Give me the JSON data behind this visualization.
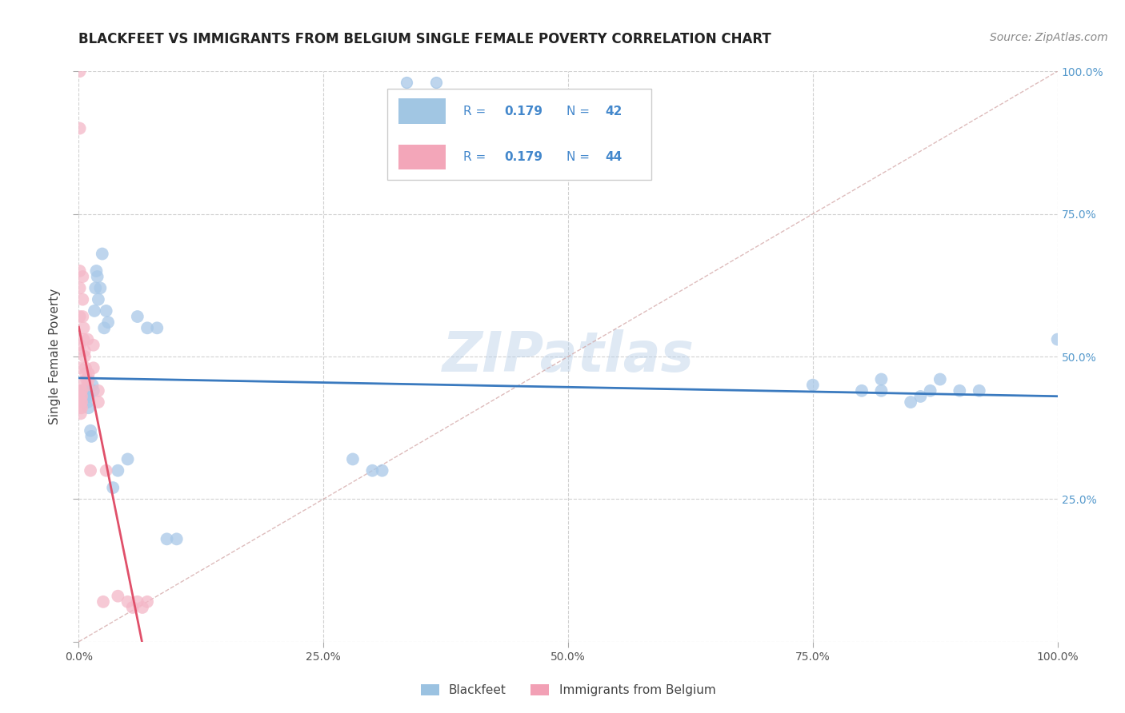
{
  "title": "BLACKFEET VS IMMIGRANTS FROM BELGIUM SINGLE FEMALE POVERTY CORRELATION CHART",
  "source": "Source: ZipAtlas.com",
  "ylabel": "Single Female Poverty",
  "xlim": [
    0,
    1.0
  ],
  "ylim": [
    0,
    1.0
  ],
  "xtick_labels": [
    "0.0%",
    "25.0%",
    "50.0%",
    "75.0%",
    "100.0%"
  ],
  "xtick_vals": [
    0,
    0.25,
    0.5,
    0.75,
    1.0
  ],
  "ytick_vals_right": [
    0.25,
    0.5,
    0.75,
    1.0
  ],
  "ytick_labels_right": [
    "25.0%",
    "50.0%",
    "75.0%",
    "100.0%"
  ],
  "legend_R_blackfeet": "0.179",
  "legend_N_blackfeet": "42",
  "legend_R_belgium": "0.179",
  "legend_N_belgium": "44",
  "color_blackfeet": "#a8c8e8",
  "color_belgium": "#f4b8c8",
  "color_blackfeet_fill": "#8ab8dc",
  "color_belgium_fill": "#f090a8",
  "color_blackfeet_line": "#3a7abf",
  "color_belgium_line": "#e0506a",
  "color_diagonal": "#d0a0a0",
  "background_color": "#ffffff",
  "grid_color": "#cccccc",
  "blackfeet_x": [
    0.005,
    0.007,
    0.008,
    0.009,
    0.01,
    0.01,
    0.012,
    0.013,
    0.014,
    0.015,
    0.016,
    0.017,
    0.018,
    0.019,
    0.02,
    0.022,
    0.024,
    0.026,
    0.028,
    0.03,
    0.035,
    0.04,
    0.05,
    0.06,
    0.07,
    0.08,
    0.09,
    0.1,
    0.28,
    0.3,
    0.31,
    0.75,
    0.8,
    0.82,
    0.82,
    0.85,
    0.86,
    0.87,
    0.88,
    0.9,
    0.92,
    1.0
  ],
  "blackfeet_y": [
    0.44,
    0.43,
    0.44,
    0.42,
    0.41,
    0.43,
    0.37,
    0.36,
    0.45,
    0.44,
    0.58,
    0.62,
    0.65,
    0.64,
    0.6,
    0.62,
    0.68,
    0.55,
    0.58,
    0.56,
    0.27,
    0.3,
    0.32,
    0.57,
    0.55,
    0.55,
    0.18,
    0.18,
    0.32,
    0.3,
    0.3,
    0.45,
    0.44,
    0.46,
    0.44,
    0.42,
    0.43,
    0.44,
    0.46,
    0.44,
    0.44,
    0.53
  ],
  "belgium_x": [
    0.001,
    0.001,
    0.001,
    0.001,
    0.001,
    0.001,
    0.001,
    0.002,
    0.002,
    0.002,
    0.002,
    0.002,
    0.002,
    0.003,
    0.003,
    0.003,
    0.003,
    0.004,
    0.004,
    0.004,
    0.005,
    0.005,
    0.006,
    0.006,
    0.007,
    0.007,
    0.008,
    0.009,
    0.009,
    0.01,
    0.01,
    0.012,
    0.015,
    0.015,
    0.02,
    0.02,
    0.025,
    0.028,
    0.04,
    0.05,
    0.055,
    0.06,
    0.065,
    0.07
  ],
  "belgium_y": [
    1.0,
    0.9,
    0.65,
    0.62,
    0.57,
    0.52,
    0.48,
    0.45,
    0.44,
    0.43,
    0.42,
    0.41,
    0.4,
    0.44,
    0.43,
    0.42,
    0.41,
    0.64,
    0.6,
    0.57,
    0.55,
    0.53,
    0.51,
    0.5,
    0.48,
    0.47,
    0.46,
    0.53,
    0.45,
    0.47,
    0.46,
    0.3,
    0.52,
    0.48,
    0.44,
    0.42,
    0.07,
    0.3,
    0.08,
    0.07,
    0.06,
    0.07,
    0.06,
    0.07
  ],
  "watermark": "ZIPatlas",
  "title_fontsize": 12,
  "axis_label_fontsize": 11,
  "tick_fontsize": 10,
  "source_fontsize": 10
}
